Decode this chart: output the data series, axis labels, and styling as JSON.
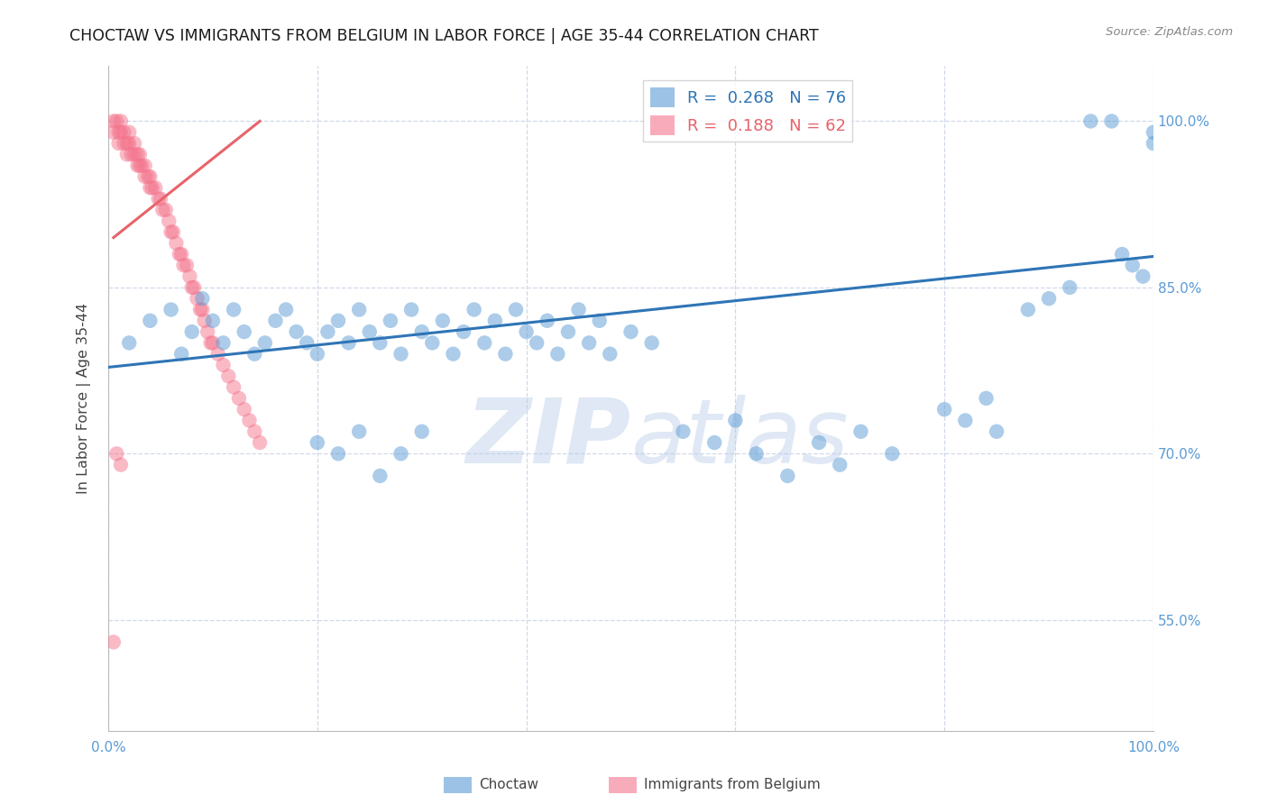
{
  "title": "CHOCTAW VS IMMIGRANTS FROM BELGIUM IN LABOR FORCE | AGE 35-44 CORRELATION CHART",
  "source": "Source: ZipAtlas.com",
  "ylabel": "In Labor Force | Age 35-44",
  "xlim": [
    0.0,
    1.0
  ],
  "ylim": [
    0.45,
    1.05
  ],
  "xtick_positions": [
    0.0,
    0.2,
    0.4,
    0.6,
    0.8,
    1.0
  ],
  "xticklabels": [
    "0.0%",
    "",
    "",
    "",
    "",
    "100.0%"
  ],
  "ytick_positions": [
    0.55,
    0.7,
    0.85,
    1.0
  ],
  "ytick_labels": [
    "55.0%",
    "70.0%",
    "85.0%",
    "100.0%"
  ],
  "blue_scatter_x": [
    0.02,
    0.04,
    0.06,
    0.07,
    0.08,
    0.09,
    0.1,
    0.11,
    0.12,
    0.13,
    0.14,
    0.15,
    0.16,
    0.17,
    0.18,
    0.19,
    0.2,
    0.21,
    0.22,
    0.23,
    0.24,
    0.25,
    0.26,
    0.27,
    0.28,
    0.29,
    0.3,
    0.31,
    0.32,
    0.33,
    0.34,
    0.35,
    0.36,
    0.37,
    0.38,
    0.39,
    0.4,
    0.41,
    0.42,
    0.43,
    0.44,
    0.45,
    0.46,
    0.47,
    0.48,
    0.5,
    0.52,
    0.55,
    0.58,
    0.6,
    0.62,
    0.65,
    0.68,
    0.7,
    0.72,
    0.75,
    0.8,
    0.82,
    0.84,
    0.85,
    0.88,
    0.9,
    0.92,
    0.94,
    0.96,
    0.97,
    0.98,
    0.99,
    1.0,
    1.0,
    0.2,
    0.22,
    0.24,
    0.26,
    0.28,
    0.3
  ],
  "blue_scatter_y": [
    0.8,
    0.82,
    0.83,
    0.79,
    0.81,
    0.84,
    0.82,
    0.8,
    0.83,
    0.81,
    0.79,
    0.8,
    0.82,
    0.83,
    0.81,
    0.8,
    0.79,
    0.81,
    0.82,
    0.8,
    0.83,
    0.81,
    0.8,
    0.82,
    0.79,
    0.83,
    0.81,
    0.8,
    0.82,
    0.79,
    0.81,
    0.83,
    0.8,
    0.82,
    0.79,
    0.83,
    0.81,
    0.8,
    0.82,
    0.79,
    0.81,
    0.83,
    0.8,
    0.82,
    0.79,
    0.81,
    0.8,
    0.72,
    0.71,
    0.73,
    0.7,
    0.68,
    0.71,
    0.69,
    0.72,
    0.7,
    0.74,
    0.73,
    0.75,
    0.72,
    0.83,
    0.84,
    0.85,
    1.0,
    1.0,
    0.88,
    0.87,
    0.86,
    0.99,
    0.98,
    0.71,
    0.7,
    0.72,
    0.68,
    0.7,
    0.72
  ],
  "pink_scatter_x": [
    0.005,
    0.005,
    0.008,
    0.01,
    0.01,
    0.012,
    0.012,
    0.015,
    0.015,
    0.018,
    0.018,
    0.02,
    0.02,
    0.022,
    0.025,
    0.025,
    0.028,
    0.028,
    0.03,
    0.03,
    0.032,
    0.035,
    0.035,
    0.038,
    0.04,
    0.04,
    0.042,
    0.045,
    0.048,
    0.05,
    0.052,
    0.055,
    0.058,
    0.06,
    0.062,
    0.065,
    0.068,
    0.07,
    0.072,
    0.075,
    0.078,
    0.08,
    0.082,
    0.085,
    0.088,
    0.09,
    0.092,
    0.095,
    0.098,
    0.1,
    0.105,
    0.11,
    0.115,
    0.12,
    0.125,
    0.13,
    0.135,
    0.14,
    0.145,
    0.008,
    0.012,
    0.005
  ],
  "pink_scatter_y": [
    1.0,
    0.99,
    1.0,
    0.99,
    0.98,
    1.0,
    0.99,
    0.99,
    0.98,
    0.98,
    0.97,
    0.99,
    0.98,
    0.97,
    0.98,
    0.97,
    0.97,
    0.96,
    0.97,
    0.96,
    0.96,
    0.96,
    0.95,
    0.95,
    0.95,
    0.94,
    0.94,
    0.94,
    0.93,
    0.93,
    0.92,
    0.92,
    0.91,
    0.9,
    0.9,
    0.89,
    0.88,
    0.88,
    0.87,
    0.87,
    0.86,
    0.85,
    0.85,
    0.84,
    0.83,
    0.83,
    0.82,
    0.81,
    0.8,
    0.8,
    0.79,
    0.78,
    0.77,
    0.76,
    0.75,
    0.74,
    0.73,
    0.72,
    0.71,
    0.7,
    0.69,
    0.53
  ],
  "blue_line_x": [
    0.0,
    1.0
  ],
  "blue_line_y": [
    0.778,
    0.878
  ],
  "pink_line_x": [
    0.005,
    0.145
  ],
  "pink_line_y": [
    0.895,
    1.0
  ],
  "blue_color": "#5b9bd5",
  "pink_color": "#f4768e",
  "blue_line_color": "#2e75b6",
  "pink_line_color": "#e8636a",
  "watermark_zip": "ZIP",
  "watermark_atlas": "atlas",
  "background_color": "#ffffff",
  "grid_color": "#d0d8e8",
  "tick_color": "#5b9bd5",
  "ytick_right_color": "#5b9bd5"
}
